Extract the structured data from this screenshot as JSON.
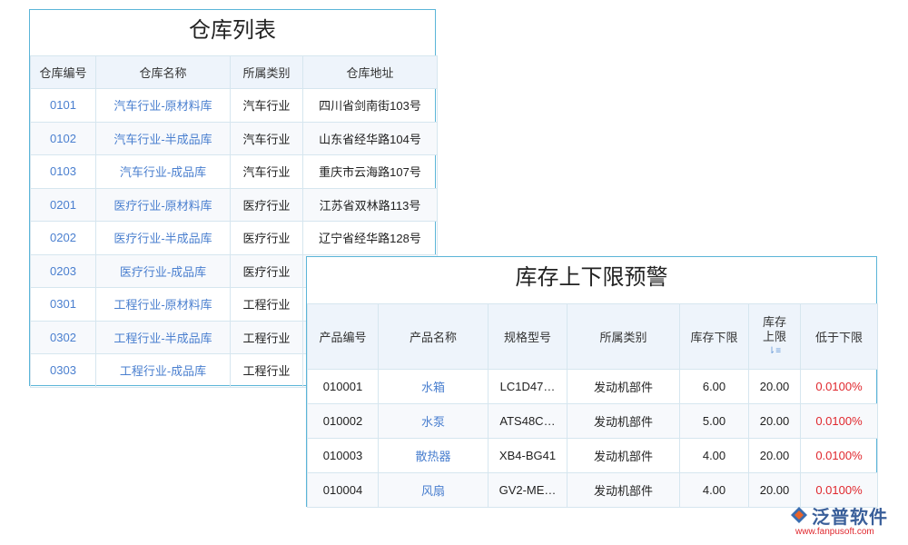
{
  "warehouse_table": {
    "title": "仓库列表",
    "columns": [
      "仓库编号",
      "仓库名称",
      "所属类别",
      "仓库地址"
    ],
    "rows": [
      [
        "0101",
        "汽车行业-原材料库",
        "汽车行业",
        "四川省剑南街103号"
      ],
      [
        "0102",
        "汽车行业-半成品库",
        "汽车行业",
        "山东省经华路104号"
      ],
      [
        "0103",
        "汽车行业-成品库",
        "汽车行业",
        "重庆市云海路107号"
      ],
      [
        "0201",
        "医疗行业-原材料库",
        "医疗行业",
        "江苏省双林路113号"
      ],
      [
        "0202",
        "医疗行业-半成品库",
        "医疗行业",
        "辽宁省经华路128号"
      ],
      [
        "0203",
        "医疗行业-成品库",
        "医疗行业",
        ""
      ],
      [
        "0301",
        "工程行业-原材料库",
        "工程行业",
        ""
      ],
      [
        "0302",
        "工程行业-半成品库",
        "工程行业",
        ""
      ],
      [
        "0303",
        "工程行业-成品库",
        "工程行业",
        ""
      ]
    ]
  },
  "stock_alert_table": {
    "title": "库存上下限预警",
    "columns": [
      "产品编号",
      "产品名称",
      "规格型号",
      "所属类别",
      "库存下限",
      "库存上限",
      "低于下限"
    ],
    "rows": [
      [
        "010001",
        "水箱",
        "LC1D47…",
        "发动机部件",
        "6.00",
        "20.00",
        "0.0100%"
      ],
      [
        "010002",
        "水泵",
        "ATS48C…",
        "发动机部件",
        "5.00",
        "20.00",
        "0.0100%"
      ],
      [
        "010003",
        "散热器",
        "XB4-BG41",
        "发动机部件",
        "4.00",
        "20.00",
        "0.0100%"
      ],
      [
        "010004",
        "风扇",
        "GV2-ME…",
        "发动机部件",
        "4.00",
        "20.00",
        "0.0100%"
      ]
    ]
  },
  "logo": {
    "name": "泛普软件",
    "url": "www.fanpusoft.com"
  }
}
